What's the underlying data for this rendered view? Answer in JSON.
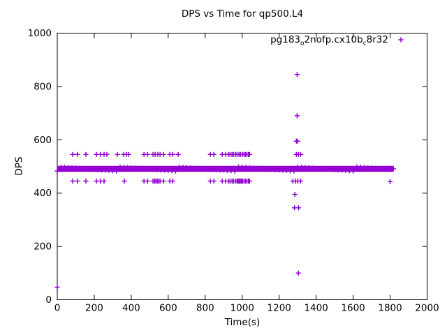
{
  "chart_data": {
    "type": "scatter",
    "title": "DPS vs Time for qp500.L4",
    "xlabel": "Time(s)",
    "ylabel": "DPS",
    "xlim": [
      0,
      2000
    ],
    "ylim": [
      0,
      1000
    ],
    "x_ticks": [
      0,
      200,
      400,
      600,
      800,
      1000,
      1200,
      1400,
      1600,
      1800,
      2000
    ],
    "y_ticks": [
      0,
      200,
      400,
      600,
      800,
      1000
    ],
    "grid": false,
    "legend_position": "top-right-inside",
    "background_color": "#ffffff",
    "axis_color": "#000000",
    "series": [
      {
        "name": "pg183_o2nofp.cx10b_c8r32",
        "legend_segments": [
          {
            "text": "pg183",
            "subscript": false
          },
          {
            "text": "o",
            "subscript": true
          },
          {
            "text": "2nofp.cx10b",
            "subscript": false
          },
          {
            "text": "c",
            "subscript": true
          },
          {
            "text": "8r32",
            "subscript": false
          }
        ],
        "color": "#9400d3",
        "marker": "plus",
        "dense_band": {
          "description": "solid-looking bar of overlapping + markers",
          "y_center": 491,
          "y_halfwidth": 11,
          "x_start": 0,
          "x_end": 1818,
          "marker_step": 4
        },
        "upper_row": {
          "y": 545,
          "x": [
            83,
            110,
            155,
            212,
            234,
            253,
            268,
            325,
            359,
            374,
            386,
            469,
            488,
            518,
            529,
            544,
            556,
            575,
            609,
            624,
            654,
            828,
            847,
            892,
            911,
            926,
            934,
            945,
            953,
            964,
            972,
            983,
            991,
            1002,
            1010,
            1018,
            1026,
            1034,
            1040,
            1293,
            1304,
            1316
          ]
        },
        "lower_row": {
          "y": 445,
          "x": [
            83,
            110,
            155,
            212,
            234,
            253,
            363,
            469,
            488,
            518,
            526,
            533,
            541,
            549,
            556,
            575,
            609,
            624,
            828,
            847,
            892,
            911,
            926,
            934,
            945,
            953,
            964,
            972,
            978,
            984,
            990,
            996,
            1002,
            1010,
            1018,
            1026,
            1034,
            1040,
            1274,
            1289,
            1301,
            1316
          ]
        },
        "outlier_points": [
          [
            0,
            47
          ],
          [
            1297,
            845
          ],
          [
            1297,
            690
          ],
          [
            1293,
            595
          ],
          [
            1300,
            595
          ],
          [
            1285,
            395
          ],
          [
            1283,
            345
          ],
          [
            1305,
            345
          ],
          [
            1304,
            100
          ],
          [
            1800,
            443
          ]
        ]
      }
    ]
  }
}
